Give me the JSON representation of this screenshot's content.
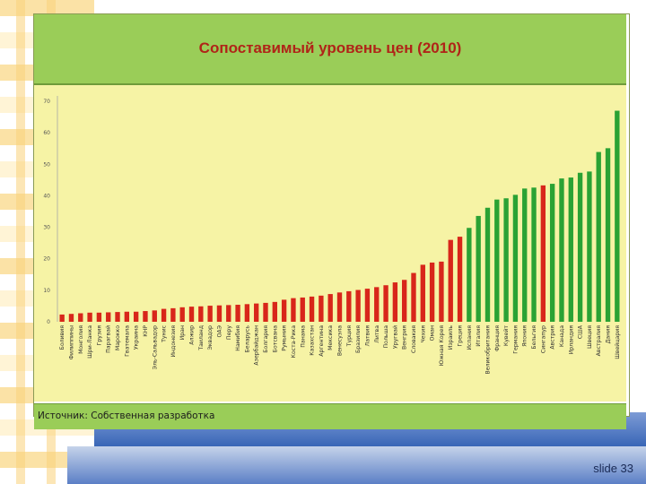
{
  "slide": {
    "number_label": "slide 33"
  },
  "chart_data": {
    "type": "bar",
    "title": "Сопоставимый уровень цен (2010)",
    "source": "Источник: Собственная разработка",
    "ylim": [
      0,
      70
    ],
    "yticks": [
      0,
      10,
      20,
      30,
      40,
      50,
      60,
      70
    ],
    "grid": false,
    "colors": {
      "below": "#d8261a",
      "above": "#2aa234"
    },
    "categories": [
      "Боливия",
      "Филиппины",
      "Монголия",
      "Шри-Ланка",
      "Грузия",
      "Парагвай",
      "Марокко",
      "Гватемала",
      "Украина",
      "КНР",
      "Эль-Сальвадор",
      "Тунис",
      "Индонезия",
      "Иран",
      "Алжир",
      "Таиланд",
      "Эквадор",
      "ОАЭ",
      "Перу",
      "Намибия",
      "Беларусь",
      "Азербайджан",
      "Болгария",
      "Ботсвана",
      "Румыния",
      "Коста-Рика",
      "Панама",
      "Казахстан",
      "Аргентина",
      "Мексика",
      "Венесуэла",
      "Турция",
      "Бразилия",
      "Латвия",
      "Литва",
      "Польша",
      "Уругвай",
      "Венгрия",
      "Словакия",
      "Чехия",
      "Оман",
      "Южная Корея",
      "Израиль",
      "Греция",
      "Испания",
      "Италия",
      "Великобритания",
      "Франция",
      "Кувейт",
      "Германия",
      "Япония",
      "Бельгия",
      "Сингапур",
      "Австрия",
      "Канада",
      "Ирландия",
      "США",
      "Швеция",
      "Австралия",
      "Дания",
      "Швейцария"
    ],
    "values": [
      2.3,
      2.5,
      2.7,
      2.9,
      2.9,
      3.0,
      3.1,
      3.2,
      3.2,
      3.4,
      3.6,
      4.1,
      4.3,
      4.6,
      4.8,
      4.9,
      5.1,
      5.2,
      5.3,
      5.4,
      5.6,
      5.8,
      6.0,
      6.3,
      7.0,
      7.5,
      7.7,
      8.0,
      8.3,
      8.8,
      9.3,
      9.7,
      10.1,
      10.5,
      11.0,
      11.6,
      12.5,
      13.3,
      15.5,
      18.1,
      18.8,
      19.1,
      26.0,
      27.0,
      29.8,
      33.6,
      36.2,
      38.8,
      39.2,
      40.3,
      42.3,
      42.6,
      43.3,
      43.8,
      45.5,
      45.8,
      47.3,
      47.7,
      53.9,
      55.1,
      67.0
    ],
    "highlight_index": 52
  }
}
